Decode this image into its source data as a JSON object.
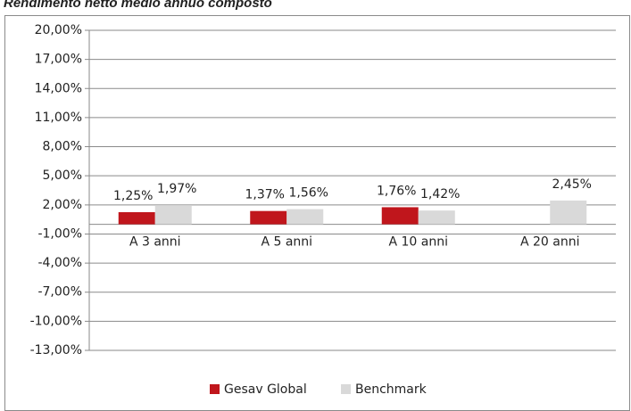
{
  "chart_data": {
    "type": "bar",
    "title": "Rendimento netto medio annuo composto",
    "categories": [
      "A 3 anni",
      "A 5 anni",
      "A 10 anni",
      "A 20 anni"
    ],
    "series": [
      {
        "name": "Gesav Global",
        "color": "#c0161c",
        "values": [
          1.25,
          1.37,
          1.76,
          null
        ],
        "value_labels": [
          "1,25%",
          "1,37%",
          "1,76%",
          null
        ]
      },
      {
        "name": "Benchmark",
        "color": "#d9d9d9",
        "values": [
          1.97,
          1.56,
          1.42,
          2.45
        ],
        "value_labels": [
          "1,97%",
          "1,56%",
          "1,42%",
          "2,45%"
        ]
      }
    ],
    "ylim": [
      -13,
      20
    ],
    "yticks": [
      {
        "value": 20,
        "label": "20,00%"
      },
      {
        "value": 17,
        "label": "17,00%"
      },
      {
        "value": 14,
        "label": "14,00%"
      },
      {
        "value": 11,
        "label": "11,00%"
      },
      {
        "value": 8,
        "label": "8,00%"
      },
      {
        "value": 5,
        "label": "5,00%"
      },
      {
        "value": 2,
        "label": "2,00%"
      },
      {
        "value": -1,
        "label": "-1,00%"
      },
      {
        "value": -4,
        "label": "-4,00%"
      },
      {
        "value": -7,
        "label": "-7,00%"
      },
      {
        "value": -10,
        "label": "-10,00%"
      },
      {
        "value": -13,
        "label": "-13,00%"
      }
    ],
    "grid": true,
    "legend": "bottom"
  }
}
